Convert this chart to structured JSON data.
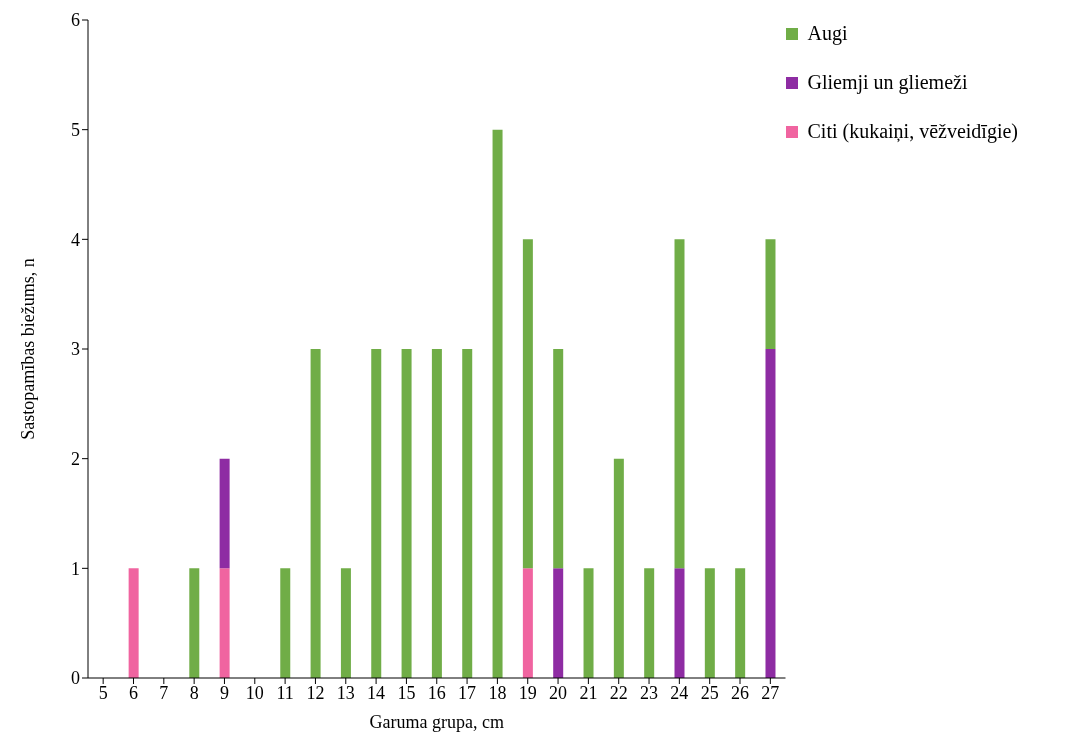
{
  "chart_data": {
    "type": "bar",
    "stacked": true,
    "xlabel": "Garuma grupa, cm",
    "ylabel": "Sastopamības biežums, n",
    "categories": [
      "5",
      "6",
      "7",
      "8",
      "9",
      "10",
      "11",
      "12",
      "13",
      "14",
      "15",
      "16",
      "17",
      "18",
      "19",
      "20",
      "21",
      "22",
      "23",
      "24",
      "25",
      "26",
      "27"
    ],
    "series": [
      {
        "name": "Citi (kukaiņi, vēžveidīgie)",
        "color": "#f064a0",
        "values": [
          null,
          1,
          null,
          null,
          1,
          null,
          null,
          null,
          null,
          null,
          null,
          null,
          null,
          null,
          1,
          null,
          null,
          null,
          null,
          null,
          null,
          null,
          null
        ]
      },
      {
        "name": "Gliemji un gliemeži",
        "color": "#8e2ca3",
        "values": [
          null,
          null,
          null,
          null,
          1,
          null,
          null,
          null,
          null,
          null,
          null,
          null,
          null,
          null,
          null,
          1,
          null,
          null,
          null,
          1,
          null,
          null,
          3
        ]
      },
      {
        "name": "Augi",
        "color": "#70ad47",
        "values": [
          null,
          null,
          null,
          1,
          null,
          null,
          1,
          3,
          1,
          3,
          3,
          3,
          3,
          5,
          3,
          2,
          1,
          2,
          1,
          3,
          1,
          1,
          1
        ]
      }
    ],
    "ylim": [
      0,
      6
    ],
    "yticks": [
      0,
      1,
      2,
      3,
      4,
      5,
      6
    ],
    "grid": false,
    "legend": "top right"
  }
}
